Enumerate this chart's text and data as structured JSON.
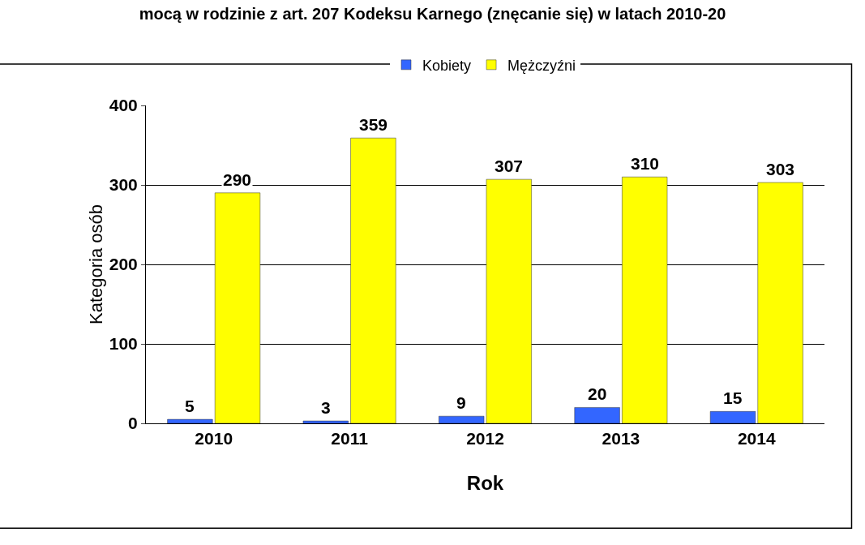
{
  "chart_data": {
    "type": "bar",
    "title": "mocą w rodzinie z art. 207 Kodeksu Karnego (znęcanie się) w latach 2010-20",
    "xlabel": "Rok",
    "ylabel": "Kategoria osób",
    "categories": [
      "2010",
      "2011",
      "2012",
      "2013",
      "2014"
    ],
    "series": [
      {
        "name": "Kobiety",
        "color": "#3366ff",
        "values": [
          5,
          3,
          9,
          20,
          15
        ]
      },
      {
        "name": "Mężczyźni",
        "color": "#ffff00",
        "values": [
          290,
          359,
          307,
          310,
          303
        ]
      }
    ],
    "ylim": [
      0,
      400
    ],
    "yticks": [
      0,
      100,
      200,
      300,
      400
    ],
    "grid": "y",
    "legend": "top",
    "data_labels": true
  }
}
